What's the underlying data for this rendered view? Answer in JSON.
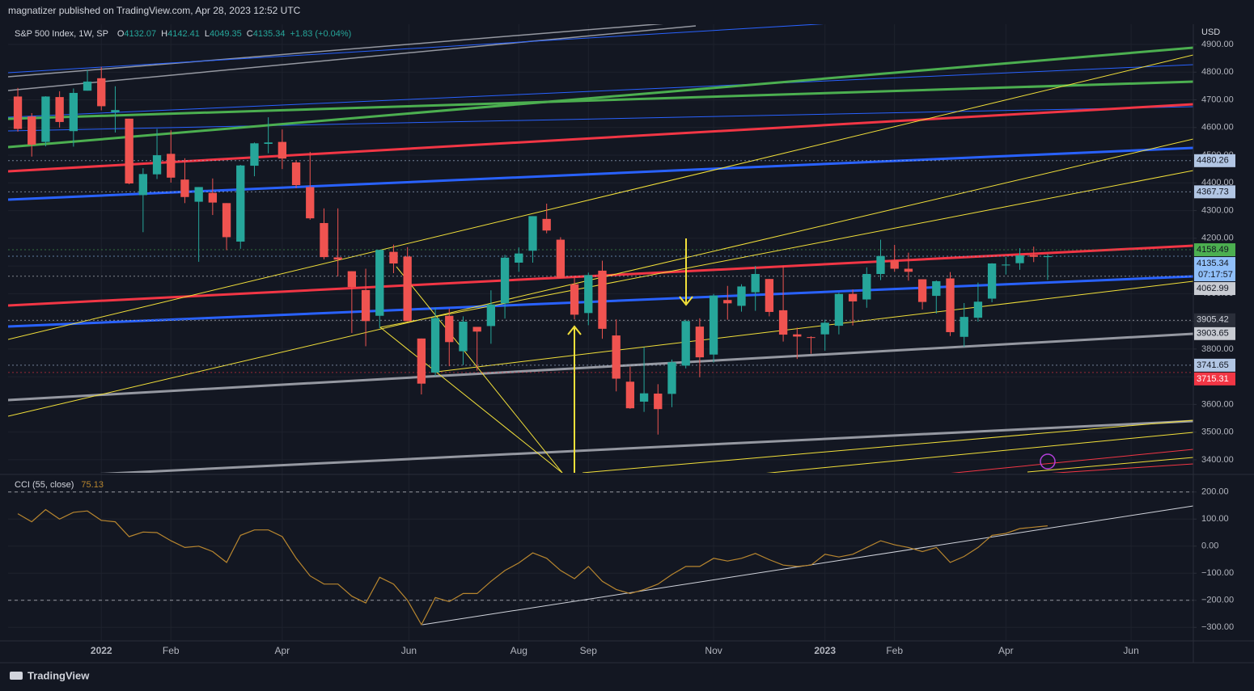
{
  "header": "magnatizer published on TradingView.com, Apr 28, 2023 12:52 UTC",
  "footer": "TradingView",
  "chart_data": {
    "type": "candlestick",
    "title": "S&P 500 Index, 1W, SP",
    "legend": [
      {
        "key": "O",
        "value": 4132.07
      },
      {
        "key": "H",
        "value": 4142.41
      },
      {
        "key": "L",
        "value": 4049.35
      },
      {
        "key": "C",
        "value": 4135.34
      }
    ],
    "change": "+1.83 (+0.04%)",
    "currency": "USD",
    "up_color": "#26a69a",
    "down_color": "#ef5350",
    "grid": true,
    "open": [
      4712,
      4640,
      4548,
      4710,
      4587,
      4733,
      4778,
      4655,
      4632,
      4356,
      4431,
      4505,
      4412,
      4332,
      4364,
      4327,
      4188,
      4462,
      4541,
      4548,
      4474,
      4385,
      4255,
      4131,
      4081,
      4013,
      3920,
      4151,
      4134,
      3838,
      3715,
      3920,
      3792,
      3880,
      3883,
      3965,
      4112,
      4155,
      4270,
      4195,
      4034,
      3930,
      4083,
      3849,
      3682,
      3610,
      3639,
      3638,
      3740,
      3881,
      3780,
      3977,
      3956,
      4005,
      4053,
      3940,
      3853,
      3843,
      3853,
      3884,
      3999,
      3979,
      4071,
      4120,
      4090,
      4052,
      3992,
      4055,
      3844,
      3913,
      3982,
      4102,
      4110,
      4139,
      4132.07
    ],
    "high": [
      4743,
      4652,
      4713,
      4731,
      4741,
      4808,
      4819,
      4749,
      4632,
      4453,
      4595,
      4590,
      4489,
      4385,
      4416,
      4327,
      4465,
      4546,
      4637,
      4593,
      4481,
      4512,
      4308,
      4308,
      4081,
      4090,
      4158,
      4177,
      4168,
      3838,
      3950,
      3946,
      3918,
      3880,
      4012,
      4140,
      4167,
      4280,
      4325,
      4204,
      4062,
      4076,
      4119,
      3907,
      3736,
      3807,
      3673,
      3762,
      3906,
      3911,
      3999,
      4028,
      4034,
      4100,
      4053,
      4101,
      3877,
      3846,
      3906,
      4003,
      4015,
      4095,
      4195,
      4176,
      4148,
      4052,
      4048,
      4078,
      3966,
      4040,
      4110,
      4133,
      4164,
      4170,
      4142.41
    ],
    "low": [
      4585,
      4495,
      4532,
      4600,
      4531,
      4733,
      4662,
      4582,
      4395,
      4222,
      4414,
      4401,
      4327,
      4115,
      4284,
      4157,
      4162,
      4424,
      4507,
      4450,
      4381,
      4267,
      4124,
      4062,
      3858,
      3810,
      3875,
      4074,
      3900,
      3636,
      3702,
      3738,
      3742,
      3722,
      3819,
      3910,
      4079,
      4112,
      4218,
      4057,
      3907,
      3886,
      3837,
      3647,
      3584,
      3573,
      3491,
      3590,
      3730,
      3698,
      3751,
      3906,
      3935,
      3938,
      3918,
      3827,
      3764,
      3783,
      3794,
      3853,
      3885,
      3949,
      4049,
      4079,
      4047,
      3943,
      3928,
      3847,
      3808,
      3899,
      3969,
      4069,
      4086,
      4114,
      4049.35
    ],
    "close": [
      4595,
      4538,
      4712,
      4620,
      4725,
      4766,
      4677,
      4663,
      4398,
      4432,
      4500,
      4419,
      4349,
      4385,
      4329,
      4204,
      4463,
      4543,
      4546,
      4488,
      4392,
      4272,
      4132,
      4123,
      4024,
      3901,
      4158,
      4109,
      3901,
      3675,
      3912,
      3825,
      3899,
      3863,
      3961,
      4130,
      4145,
      4280,
      4228,
      4057,
      3924,
      4067,
      3873,
      3693,
      3586,
      3640,
      3583,
      3752,
      3901,
      3770,
      3993,
      3965,
      4026,
      4071,
      3934,
      3852,
      3845,
      3840,
      3895,
      3999,
      3972,
      4071,
      4136,
      4090,
      4079,
      3970,
      4045,
      3861,
      3916,
      3971,
      4109,
      4105,
      4138,
      4133,
      4135.34
    ],
    "xlim": [
      -0.7,
      84.47
    ],
    "xticks": [
      {
        "value": 6,
        "label": "2022"
      },
      {
        "value": 11,
        "label": "Feb"
      },
      {
        "value": 19,
        "label": "Apr"
      },
      {
        "value": 28.1,
        "label": "Jun"
      },
      {
        "value": 36,
        "label": "Aug"
      },
      {
        "value": 41,
        "label": "Sep"
      },
      {
        "value": 50,
        "label": "Nov"
      },
      {
        "value": 58,
        "label": "2023"
      },
      {
        "value": 63,
        "label": "Feb"
      },
      {
        "value": 71,
        "label": "Apr"
      },
      {
        "value": 80,
        "label": "Jun"
      }
    ],
    "ylim": [
      3353,
      4973
    ],
    "yticks": [
      {
        "value": 3400,
        "label": "3400.00"
      },
      {
        "value": 3500,
        "label": "3500.00"
      },
      {
        "value": 3600,
        "label": "3600.00"
      },
      {
        "value": 3700,
        "label": "3700.00"
      },
      {
        "value": 3800,
        "label": "3800.00"
      },
      {
        "value": 3900,
        "label": "3900.00"
      },
      {
        "value": 4000,
        "label": "4000.00"
      },
      {
        "value": 4100,
        "label": "4100.00"
      },
      {
        "value": 4200,
        "label": "4200.00"
      },
      {
        "value": 4300,
        "label": "4300.00"
      },
      {
        "value": 4400,
        "label": "4400.00"
      },
      {
        "value": 4500,
        "label": "4500.00"
      },
      {
        "value": 4600,
        "label": "4600.00"
      },
      {
        "value": 4700,
        "label": "4700.00"
      },
      {
        "value": 4800,
        "label": "4800.00"
      },
      {
        "value": 4900,
        "label": "4900.00"
      }
    ],
    "levels": [
      {
        "value": 4480.26,
        "color": "#b2c6e4",
        "text_color": "#131722"
      },
      {
        "value": 4367.73,
        "color": "#b2c6e4",
        "text_color": "#131722"
      },
      {
        "value": 4158.49,
        "color": "#4caf50",
        "text_color": "#131722"
      },
      {
        "value": 4135.34,
        "color": "#90bff9",
        "text_color": "#131722",
        "countdown": "07:17:57"
      },
      {
        "value": 4062.99,
        "color": "#c8cbd2",
        "text_color": "#131722"
      },
      {
        "value": 3905.42,
        "color": "#2a2e39",
        "text_color": "#d1d4dc"
      },
      {
        "value": 3903.65,
        "color": "#c8cbd2",
        "text_color": "#131722"
      },
      {
        "value": 3741.65,
        "color": "#b2c6e4",
        "text_color": "#131722"
      },
      {
        "value": 3715.31,
        "color": "#f23645",
        "text_color": "#ffffff"
      }
    ],
    "indicator": {
      "type": "line",
      "title": "CCI (55, close)",
      "last_value": 75.13,
      "color": "#b8862f",
      "values": [
        120,
        90,
        135,
        100,
        125,
        130,
        95,
        90,
        35,
        52,
        50,
        20,
        -5,
        0,
        -20,
        -60,
        40,
        60,
        60,
        35,
        -45,
        -110,
        -140,
        -140,
        -185,
        -210,
        -115,
        -140,
        -200,
        -290,
        -190,
        -205,
        -175,
        -175,
        -130,
        -90,
        -62,
        -25,
        -45,
        -90,
        -120,
        -75,
        -130,
        -160,
        -175,
        -160,
        -140,
        -105,
        -75,
        -75,
        -45,
        -55,
        -45,
        -27,
        -50,
        -70,
        -75,
        -70,
        -30,
        -40,
        -30,
        -5,
        20,
        5,
        -5,
        -20,
        -5,
        -60,
        -38,
        -5,
        40,
        47,
        65,
        70,
        75.13
      ],
      "ylim": [
        -350,
        262
      ],
      "yticks": [
        {
          "value": 200,
          "label": "200.00"
        },
        {
          "value": 100,
          "label": "100.00"
        },
        {
          "value": 0,
          "label": "0.00"
        },
        {
          "value": -100,
          "label": "−100.00"
        },
        {
          "value": -200,
          "label": "−200.00"
        },
        {
          "value": -300,
          "label": "−300.00"
        }
      ],
      "bands": [
        200,
        -200
      ]
    }
  }
}
